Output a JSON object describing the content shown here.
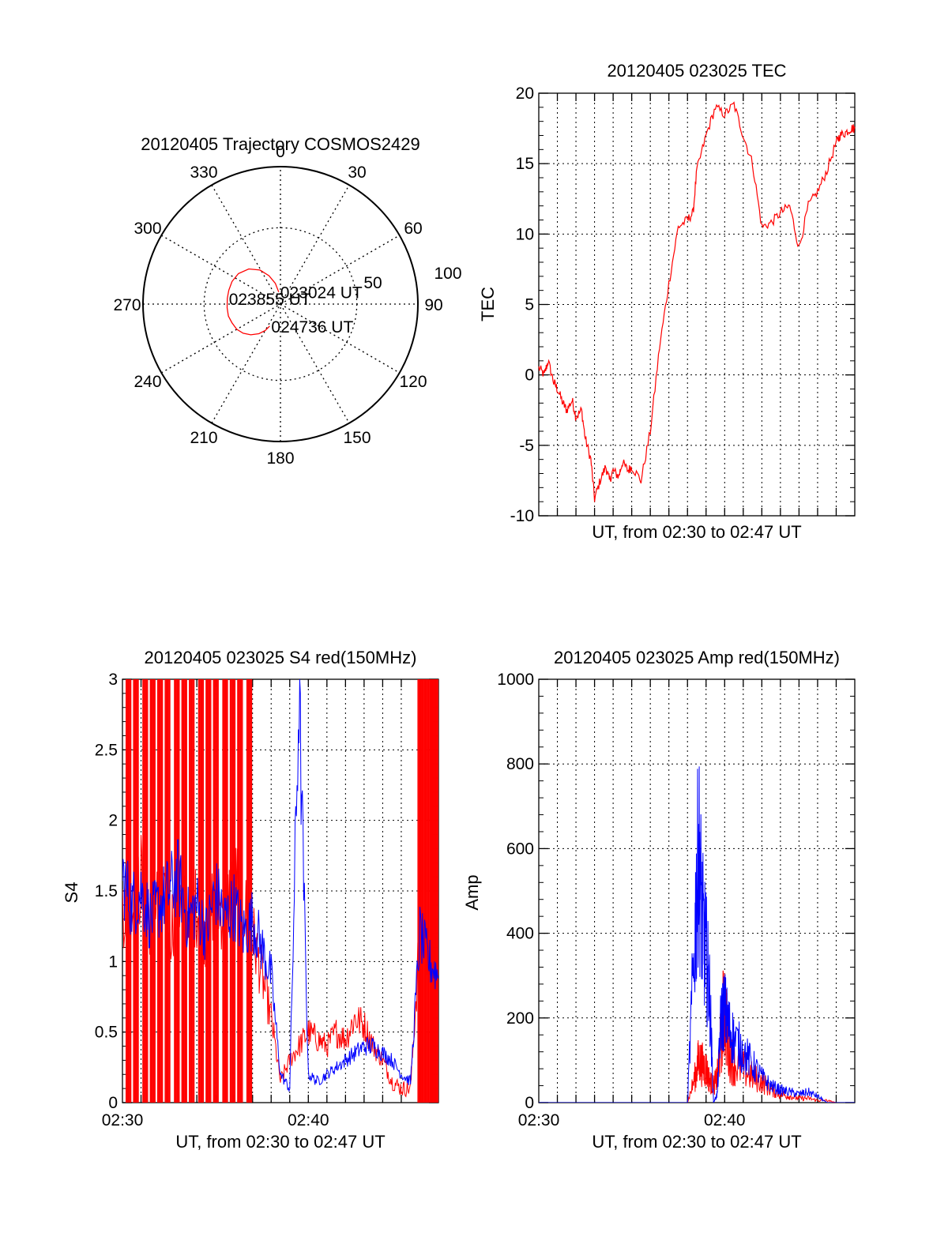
{
  "polar": {
    "title": "20120405 Trajectory COSMOS2429",
    "azimuth_labels": [
      "0",
      "30",
      "60",
      "90",
      "120",
      "150",
      "180",
      "210",
      "240",
      "270",
      "300",
      "330"
    ],
    "radial_labels": [
      "50",
      "100"
    ],
    "trajectory": [
      [
        352,
        8
      ],
      [
        346,
        14
      ],
      [
        338,
        20
      ],
      [
        329,
        26
      ],
      [
        318,
        31
      ],
      [
        306,
        34
      ],
      [
        295,
        35
      ],
      [
        285,
        35
      ],
      [
        276,
        35
      ],
      [
        266,
        35
      ],
      [
        257,
        35
      ],
      [
        249,
        34
      ],
      [
        240,
        33
      ],
      [
        232,
        31
      ],
      [
        224,
        28
      ],
      [
        216,
        24
      ],
      [
        210,
        20
      ],
      [
        206,
        16
      ]
    ],
    "point_labels": [
      {
        "text": "023024 UT",
        "az": 352,
        "zen": 8
      },
      {
        "text": "023855 UT",
        "az": 276,
        "zen": 35
      },
      {
        "text": "024736 UT",
        "az": 206,
        "zen": 16
      }
    ],
    "color": "#ff0000"
  },
  "tec": {
    "title": "20120405 023025 TEC",
    "xlabel": "UT, from 02:30 to 02:47 UT",
    "ylabel": "TEC",
    "ylim": [
      -10,
      20
    ],
    "yticks": [
      "-10",
      "-5",
      "0",
      "5",
      "10",
      "15",
      "20"
    ],
    "x_minutes": [
      0.0,
      0.3,
      0.5,
      0.8,
      1.0,
      1.3,
      1.5,
      1.8,
      2.0,
      2.3,
      2.5,
      2.8,
      3.0,
      3.3,
      3.6,
      3.8,
      4.0,
      4.3,
      4.5,
      4.8,
      5.0,
      5.5,
      6.0,
      6.5,
      7.0,
      7.5,
      8.0,
      8.3,
      8.5,
      9.0,
      9.5,
      10.0,
      10.5,
      11.0,
      11.5,
      12.0,
      12.5,
      13.0,
      13.5,
      14.0,
      14.5,
      15.0,
      15.5,
      16.0,
      16.2,
      16.5,
      16.8,
      17.0
    ],
    "values": [
      0.5,
      0.0,
      1.0,
      -0.5,
      -1.0,
      -2.0,
      -2.5,
      -1.8,
      -3.0,
      -2.5,
      -4.5,
      -6.0,
      -8.8,
      -7.5,
      -6.5,
      -7.5,
      -6.8,
      -7.2,
      -6.2,
      -6.8,
      -6.5,
      -7.5,
      -4.0,
      2.0,
      6.5,
      10.5,
      11.0,
      11.5,
      14.5,
      17.0,
      19.0,
      18.5,
      19.2,
      17.0,
      15.0,
      10.5,
      10.8,
      11.5,
      12.0,
      9.0,
      12.0,
      13.0,
      14.5,
      16.5,
      17.0,
      17.2,
      17.5,
      17.5
    ],
    "color": "#ff0000"
  },
  "s4": {
    "title": "20120405 023025 S4 red(150MHz)",
    "xlabel": "UT, from 02:30 to 02:47 UT",
    "ylabel": "S4",
    "ylim": [
      0,
      3
    ],
    "yticks": [
      "0",
      "0.5",
      "1",
      "1.5",
      "2",
      "2.5",
      "3"
    ],
    "xticks": [
      "02:30",
      "02:40"
    ],
    "x_minutes": [
      0,
      0.5,
      1,
      1.5,
      2,
      2.5,
      3,
      3.5,
      4,
      4.5,
      5,
      5.5,
      6,
      6.5,
      7,
      7.5,
      8,
      8.5,
      9,
      9.5,
      10,
      10.5,
      11,
      11.5,
      12,
      12.5,
      13,
      13.5,
      14,
      14.5,
      15,
      15.5,
      16,
      16.5,
      17
    ],
    "series": [
      {
        "color": "#ff0000",
        "values": [
          1.4,
          1.35,
          1.6,
          1.3,
          1.5,
          1.2,
          1.45,
          1.3,
          1.4,
          1.2,
          1.5,
          1.3,
          1.6,
          1.4,
          1.2,
          0.9,
          0.6,
          0.15,
          0.3,
          0.4,
          0.5,
          0.45,
          0.4,
          0.5,
          0.45,
          0.6,
          0.55,
          0.4,
          0.3,
          0.15,
          0.1,
          0.1,
          1.2,
          1.0,
          0.9
        ],
        "spikes": [
          0.2,
          0.6,
          1.1,
          1.5,
          1.9,
          2.3,
          2.8,
          3.2,
          3.6,
          4.1,
          4.5,
          4.9,
          5.4,
          5.8,
          6.2,
          6.7,
          15.9,
          16.1,
          16.4,
          16.6,
          16.8
        ]
      },
      {
        "color": "#0000ff",
        "values": [
          1.6,
          1.4,
          1.5,
          1.3,
          1.4,
          1.5,
          1.6,
          1.3,
          1.4,
          1.2,
          1.5,
          1.3,
          1.4,
          1.2,
          1.3,
          1.1,
          0.9,
          0.2,
          0.1,
          2.9,
          0.2,
          0.15,
          0.2,
          0.25,
          0.3,
          0.35,
          0.4,
          0.4,
          0.35,
          0.3,
          0.2,
          0.15,
          1.2,
          1.0,
          0.9
        ]
      }
    ]
  },
  "amp": {
    "title": "20120405 023025 Amp red(150MHz)",
    "xlabel": "UT, from 02:30 to 02:47 UT",
    "ylabel": "Amp",
    "ylim": [
      0,
      1000
    ],
    "yticks": [
      "0",
      "200",
      "400",
      "600",
      "800",
      "1000"
    ],
    "xticks": [
      "02:30",
      "02:40"
    ],
    "x_minutes": [
      0,
      1,
      2,
      3,
      4,
      5,
      6,
      7,
      8,
      8.4,
      8.6,
      8.8,
      9.0,
      9.2,
      9.4,
      9.6,
      9.8,
      10.0,
      10.2,
      10.5,
      11.0,
      11.5,
      12.0,
      12.5,
      13.0,
      13.5,
      14.0,
      14.5,
      15.0,
      15.5,
      16.0,
      16.5,
      17.0
    ],
    "series": [
      {
        "color": "#ff0000",
        "values": [
          0,
          0,
          0,
          0,
          0,
          0,
          0,
          0,
          0,
          60,
          100,
          90,
          80,
          50,
          40,
          60,
          150,
          240,
          120,
          90,
          80,
          60,
          50,
          30,
          20,
          15,
          10,
          10,
          5,
          5,
          0,
          0,
          0
        ]
      },
      {
        "color": "#0000ff",
        "values": [
          0,
          0,
          0,
          0,
          0,
          0,
          0,
          0,
          0,
          400,
          600,
          420,
          350,
          250,
          0,
          20,
          200,
          220,
          180,
          150,
          120,
          90,
          60,
          40,
          30,
          25,
          20,
          25,
          15,
          0,
          0,
          0,
          0
        ]
      }
    ]
  }
}
